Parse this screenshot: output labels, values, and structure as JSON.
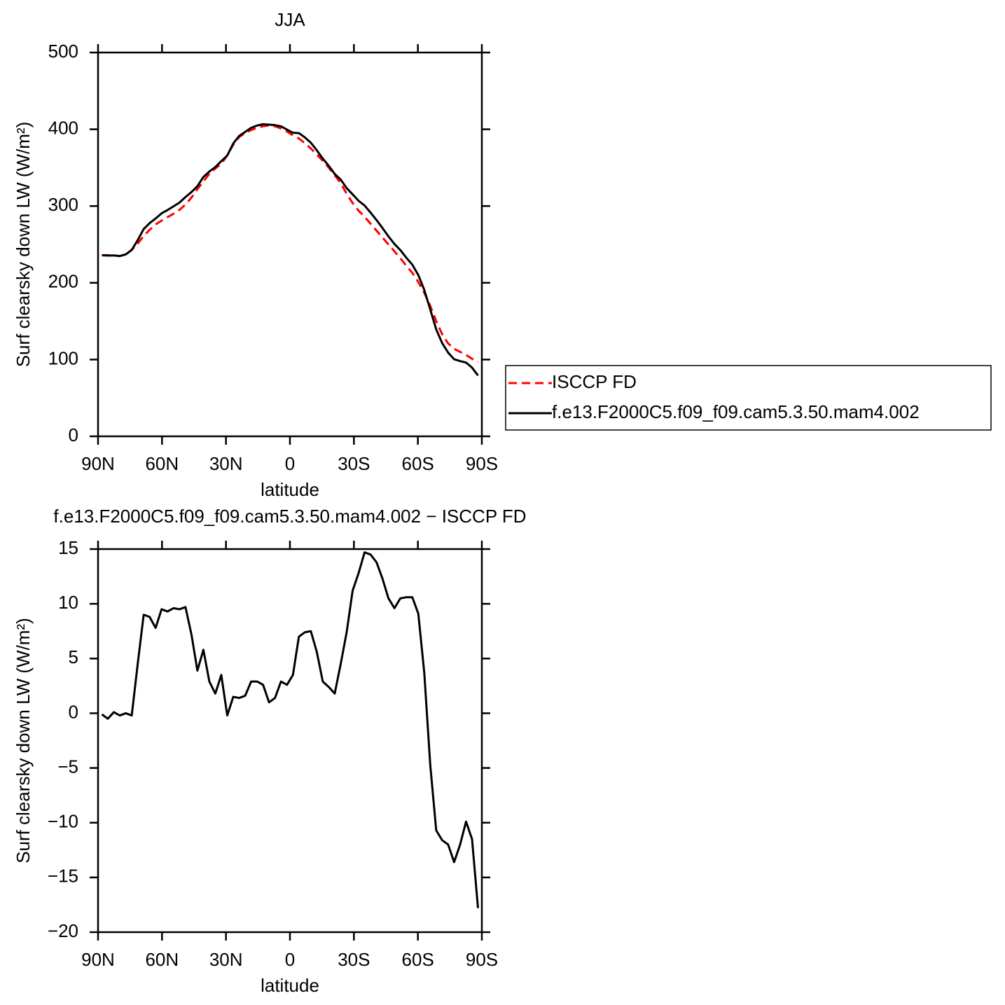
{
  "chart_data": [
    {
      "type": "line",
      "title": "JJA",
      "xlabel": "latitude",
      "ylabel": "Surf clearsky down LW (W/m²)",
      "x": [
        88.2,
        85.4,
        82.6,
        79.8,
        77.0,
        74.2,
        71.4,
        68.6,
        65.8,
        63.0,
        60.2,
        57.4,
        54.6,
        51.8,
        49.0,
        46.2,
        43.4,
        40.6,
        37.8,
        35.0,
        32.2,
        29.4,
        26.6,
        23.8,
        21.0,
        18.2,
        15.4,
        12.6,
        9.8,
        7.0,
        4.2,
        1.4,
        -1.4,
        -4.2,
        -7.0,
        -9.8,
        -12.6,
        -15.4,
        -18.2,
        -21.0,
        -23.8,
        -26.6,
        -29.4,
        -32.2,
        -35.0,
        -37.8,
        -40.6,
        -43.4,
        -46.2,
        -49.0,
        -51.8,
        -54.6,
        -57.4,
        -60.2,
        -63.0,
        -65.8,
        -68.6,
        -71.4,
        -74.2,
        -77.0,
        -79.8,
        -82.6,
        -85.4,
        -88.2
      ],
      "xlim": [
        90,
        -90
      ],
      "xticks": [
        {
          "value": 90,
          "label": "90N"
        },
        {
          "value": 60,
          "label": "60N"
        },
        {
          "value": 30,
          "label": "30N"
        },
        0,
        {
          "value": -30,
          "label": "30S"
        },
        {
          "value": -60,
          "label": "60S"
        },
        {
          "value": -90,
          "label": "90S"
        }
      ],
      "ylim": [
        0,
        500
      ],
      "yticks": [
        0,
        100,
        200,
        300,
        400,
        500
      ],
      "legend": "right",
      "series": [
        {
          "name": "ISCCP FD",
          "color": "#ff0000",
          "dashed": true,
          "values": [
            236,
            236,
            235.5,
            235,
            237,
            243,
            251,
            261,
            269,
            276,
            281,
            285.5,
            290,
            295,
            302,
            311,
            322,
            332,
            342,
            349,
            355,
            366,
            380,
            390,
            395,
            399,
            402,
            404,
            405,
            404,
            401,
            397,
            392,
            388,
            382,
            375,
            367,
            359,
            350,
            340,
            330,
            316,
            304,
            294,
            286,
            277,
            268,
            259,
            250,
            241,
            232,
            222,
            213,
            201,
            187,
            170,
            150,
            133,
            121,
            114,
            110,
            106,
            101,
            97
          ]
        },
        {
          "name": "f.e13.F2000C5.f09_f09.cam5.3.50.mam4.002",
          "color": "#000000",
          "dashed": false,
          "values": [
            235.9,
            235.5,
            235.6,
            234.8,
            237,
            242.8,
            255.5,
            270,
            277.8,
            283.8,
            290.5,
            294.8,
            299.6,
            304.5,
            311.7,
            318.2,
            325.9,
            337.8,
            344.9,
            350.8,
            358.5,
            365.8,
            381.5,
            391.4,
            396.6,
            401.9,
            404.9,
            406.6,
            406,
            405.4,
            403.9,
            399.6,
            395.5,
            395,
            389.4,
            382.5,
            372.6,
            361.9,
            352.4,
            341.8,
            334.5,
            323.4,
            315.2,
            306.8,
            300.7,
            291.5,
            281.8,
            271.3,
            260.5,
            250.6,
            242.5,
            232.6,
            223.6,
            210.1,
            190.7,
            165.3,
            139.3,
            121.4,
            109,
            100.4,
            98,
            96.1,
            89.5,
            79.2
          ]
        }
      ]
    },
    {
      "type": "line",
      "title": "f.e13.F2000C5.f09_f09.cam5.3.50.mam4.002 − ISCCP FD",
      "xlabel": "latitude",
      "ylabel": "Surf clearsky down LW (W/m²)",
      "x": [
        88.2,
        85.4,
        82.6,
        79.8,
        77.0,
        74.2,
        71.4,
        68.6,
        65.8,
        63.0,
        60.2,
        57.4,
        54.6,
        51.8,
        49.0,
        46.2,
        43.4,
        40.6,
        37.8,
        35.0,
        32.2,
        29.4,
        26.6,
        23.8,
        21.0,
        18.2,
        15.4,
        12.6,
        9.8,
        7.0,
        4.2,
        1.4,
        -1.4,
        -4.2,
        -7.0,
        -9.8,
        -12.6,
        -15.4,
        -18.2,
        -21.0,
        -23.8,
        -26.6,
        -29.4,
        -32.2,
        -35.0,
        -37.8,
        -40.6,
        -43.4,
        -46.2,
        -49.0,
        -51.8,
        -54.6,
        -57.4,
        -60.2,
        -63.0,
        -65.8,
        -68.6,
        -71.4,
        -74.2,
        -77.0,
        -79.8,
        -82.6,
        -85.4,
        -88.2
      ],
      "xlim": [
        90,
        -90
      ],
      "xticks": [
        {
          "value": 90,
          "label": "90N"
        },
        {
          "value": 60,
          "label": "60N"
        },
        {
          "value": 30,
          "label": "30N"
        },
        0,
        {
          "value": -30,
          "label": "30S"
        },
        {
          "value": -60,
          "label": "60S"
        },
        {
          "value": -90,
          "label": "90S"
        }
      ],
      "ylim": [
        -20,
        15
      ],
      "yticks": [
        {
          "value": -20,
          "label": "−20"
        },
        {
          "value": -15,
          "label": "−15"
        },
        {
          "value": -10,
          "label": "−10"
        },
        {
          "value": -5,
          "label": "−5"
        },
        0,
        5,
        10,
        15
      ],
      "series": [
        {
          "color": "#000000",
          "dashed": false,
          "values": [
            -0.1,
            -0.5,
            0.1,
            -0.2,
            0,
            -0.2,
            4.5,
            9.0,
            8.8,
            7.8,
            9.5,
            9.3,
            9.6,
            9.5,
            9.7,
            7.2,
            3.9,
            5.8,
            2.9,
            1.8,
            3.5,
            -0.2,
            1.5,
            1.4,
            1.6,
            2.9,
            2.9,
            2.6,
            1.0,
            1.4,
            2.9,
            2.6,
            3.5,
            7.0,
            7.4,
            7.5,
            5.6,
            2.9,
            2.4,
            1.8,
            4.5,
            7.4,
            11.2,
            12.8,
            14.7,
            14.5,
            13.8,
            12.3,
            10.5,
            9.6,
            10.5,
            10.6,
            10.6,
            9.1,
            3.7,
            -4.7,
            -10.7,
            -11.6,
            -12.0,
            -13.6,
            -12.0,
            -9.9,
            -11.5,
            -17.8
          ]
        }
      ]
    }
  ]
}
